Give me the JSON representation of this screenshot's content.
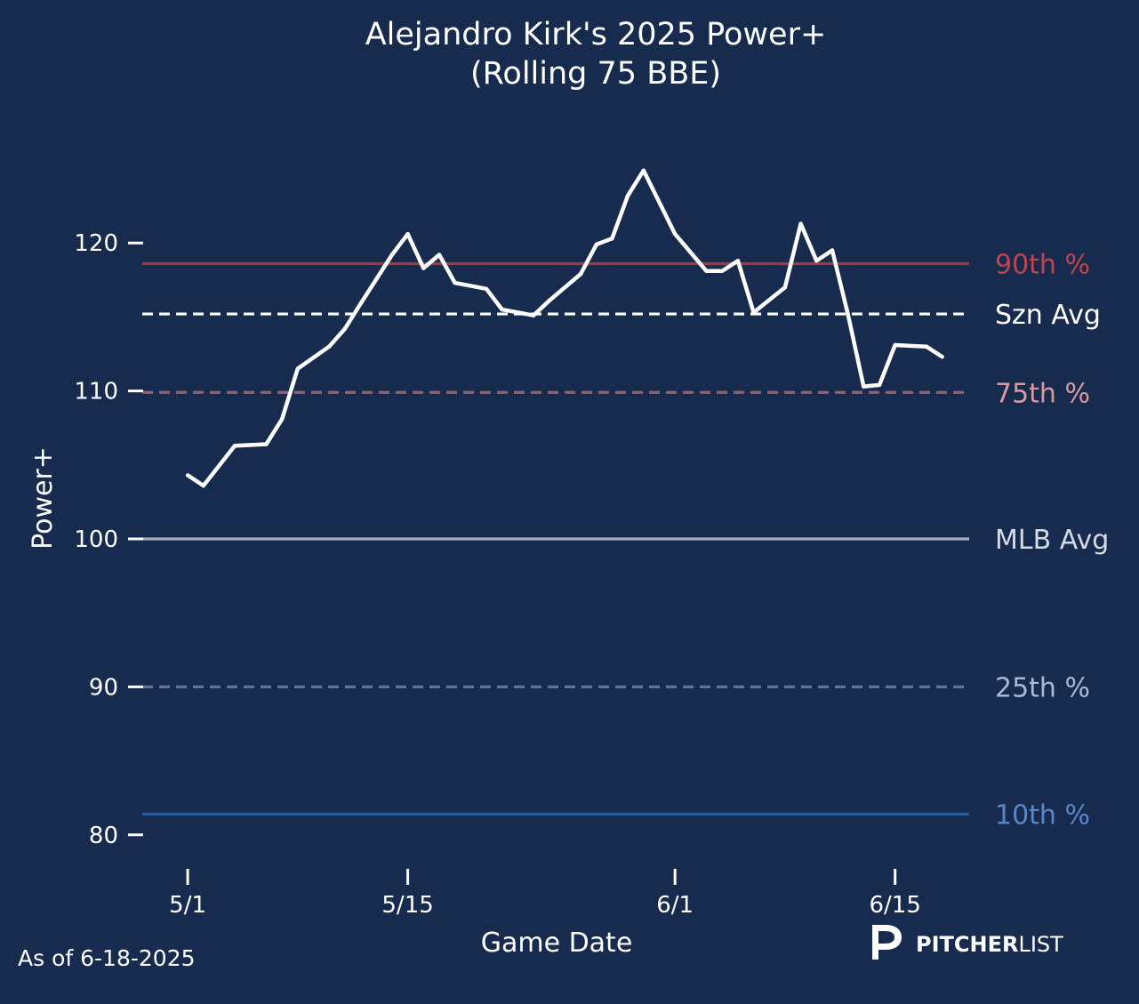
{
  "chart_data": {
    "type": "line",
    "title_line1": "Alejandro Kirk's 2025 Power+",
    "title_line2": "(Rolling 75 BBE)",
    "xlabel": "Game Date",
    "ylabel": "Power+",
    "x_start_date": "2025-04-25",
    "x_ticks": [
      {
        "date": "2025-05-01",
        "label": "5/1"
      },
      {
        "date": "2025-05-15",
        "label": "5/15"
      },
      {
        "date": "2025-06-01",
        "label": "6/1"
      },
      {
        "date": "2025-06-15",
        "label": "6/15"
      }
    ],
    "y_ticks": [
      80,
      90,
      100,
      110,
      120
    ],
    "xlim": [
      "2025-04-25",
      "2025-06-21"
    ],
    "ylim": [
      78,
      130
    ],
    "series": [
      {
        "color": "#ffffff",
        "points": [
          [
            "2025-05-01",
            104.3
          ],
          [
            "2025-05-02",
            103.6
          ],
          [
            "2025-05-04",
            106.3
          ],
          [
            "2025-05-06",
            106.4
          ],
          [
            "2025-05-07",
            108.1
          ],
          [
            "2025-05-08",
            111.5
          ],
          [
            "2025-05-10",
            113.0
          ],
          [
            "2025-05-11",
            114.2
          ],
          [
            "2025-05-12",
            115.9
          ],
          [
            "2025-05-14",
            119.2
          ],
          [
            "2025-05-15",
            120.6
          ],
          [
            "2025-05-16",
            118.3
          ],
          [
            "2025-05-17",
            119.2
          ],
          [
            "2025-05-18",
            117.3
          ],
          [
            "2025-05-20",
            116.9
          ],
          [
            "2025-05-21",
            115.5
          ],
          [
            "2025-05-23",
            115.1
          ],
          [
            "2025-05-24",
            116.1
          ],
          [
            "2025-05-26",
            117.9
          ],
          [
            "2025-05-27",
            119.9
          ],
          [
            "2025-05-28",
            120.3
          ],
          [
            "2025-05-29",
            123.2
          ],
          [
            "2025-05-30",
            124.9
          ],
          [
            "2025-06-01",
            120.6
          ],
          [
            "2025-06-03",
            118.1
          ],
          [
            "2025-06-04",
            118.1
          ],
          [
            "2025-06-05",
            118.8
          ],
          [
            "2025-06-06",
            115.3
          ],
          [
            "2025-06-08",
            117.0
          ],
          [
            "2025-06-09",
            121.3
          ],
          [
            "2025-06-10",
            118.8
          ],
          [
            "2025-06-11",
            119.5
          ],
          [
            "2025-06-12",
            115.2
          ],
          [
            "2025-06-13",
            110.3
          ],
          [
            "2025-06-14",
            110.4
          ],
          [
            "2025-06-15",
            113.1
          ],
          [
            "2025-06-17",
            113.0
          ],
          [
            "2025-06-18",
            112.3
          ]
        ]
      }
    ],
    "reference_lines": [
      {
        "label": "90th %",
        "value": 118.6,
        "color": "#a3393f",
        "dashed": false,
        "label_color": "#c0444b"
      },
      {
        "label": "Szn Avg",
        "value": 115.2,
        "color": "#ffffff",
        "dashed": true,
        "label_color": "#ffffff"
      },
      {
        "label": "75th %",
        "value": 109.9,
        "color": "#8a6574",
        "dashed": true,
        "label_color": "#d99a9e"
      },
      {
        "label": "MLB Avg",
        "value": 100,
        "color": "#a7aebb",
        "dashed": false,
        "label_color": "#d5dae3"
      },
      {
        "label": "25th %",
        "value": 90,
        "color": "#5f7499",
        "dashed": true,
        "label_color": "#a9b9d5"
      },
      {
        "label": "10th %",
        "value": 81.4,
        "color": "#2e5a9c",
        "dashed": false,
        "label_color": "#5b86c8"
      }
    ],
    "grid": false,
    "background": "#172b4f"
  },
  "footer": {
    "as_of": "As of 6-18-2025",
    "brand_bold": "PITCHER",
    "brand_light": "LIST"
  }
}
